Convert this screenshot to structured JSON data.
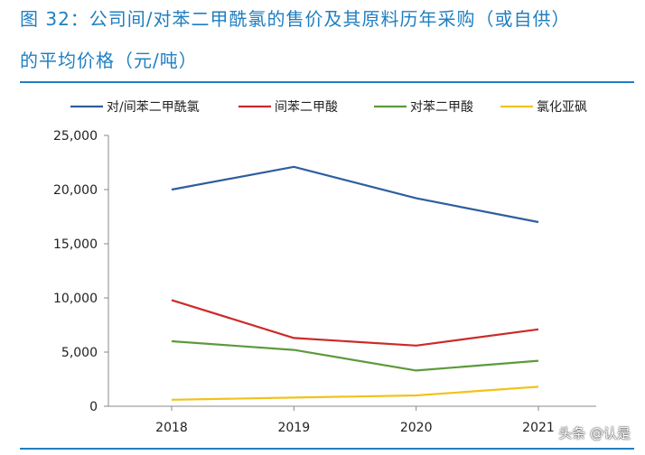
{
  "header": {
    "title_line1": "图 32：公司间/对苯二甲酰氯的售价及其原料历年采购（或自供）",
    "title_line2": "的平均价格（元/吨）"
  },
  "watermark": "头条 @认是",
  "chart_data": {
    "type": "line",
    "categories": [
      "2018",
      "2019",
      "2020",
      "2021"
    ],
    "ylim": [
      0,
      25000
    ],
    "yticks": [
      0,
      5000,
      10000,
      15000,
      20000,
      25000
    ],
    "ytick_labels": [
      "0",
      "5,000",
      "10,000",
      "15,000",
      "20,000",
      "25,000"
    ],
    "legend_position": "top",
    "grid": false,
    "series": [
      {
        "name": "对/间苯二甲酰氯",
        "color": "#2e5e9e",
        "values": [
          20000,
          22100,
          19200,
          17000
        ]
      },
      {
        "name": "间苯二甲酸",
        "color": "#cc2a2a",
        "values": [
          9800,
          6300,
          5600,
          7100
        ]
      },
      {
        "name": "对苯二甲酸",
        "color": "#5c9a3c",
        "values": [
          6000,
          5200,
          3300,
          4200
        ]
      },
      {
        "name": "氯化亚砜",
        "color": "#f2c21b",
        "values": [
          600,
          800,
          1000,
          1800
        ]
      }
    ]
  }
}
